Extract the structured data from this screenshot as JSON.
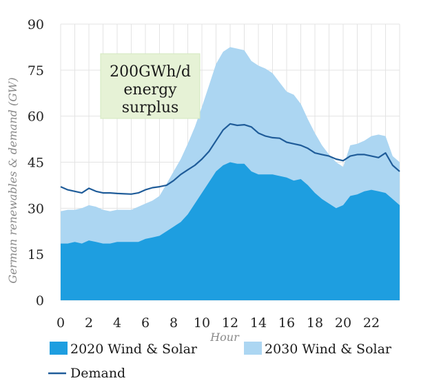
{
  "chart_data": {
    "type": "area",
    "xlabel": "Hour",
    "ylabel": "German renewables & demand (GW)",
    "xlim": [
      0,
      24
    ],
    "ylim": [
      0,
      90
    ],
    "y_ticks": [
      "0",
      "15",
      "30",
      "45",
      "60",
      "75",
      "90"
    ],
    "x_ticks": [
      "0",
      "2",
      "4",
      "6",
      "8",
      "10",
      "12",
      "14",
      "16",
      "18",
      "20",
      "22"
    ],
    "grid": "vertical and horizontal",
    "legend_position": "bottom",
    "annotation": {
      "lines": [
        "200GWh/d",
        "energy",
        "surplus"
      ]
    },
    "series": [
      {
        "name": "2020 Wind & Solar",
        "kind": "area",
        "color": "#1e9ee0",
        "x": [
          0,
          0.5,
          1,
          1.5,
          2,
          2.5,
          3,
          3.5,
          4,
          4.5,
          5,
          5.5,
          6,
          6.5,
          7,
          7.5,
          8,
          8.5,
          9,
          9.5,
          10,
          10.5,
          11,
          11.5,
          12,
          12.5,
          13,
          13.5,
          14,
          14.5,
          15,
          15.5,
          16,
          16.5,
          17,
          17.5,
          18,
          18.5,
          19,
          19.5,
          20,
          20.5,
          21,
          21.5,
          22,
          22.5,
          23,
          23.5,
          24
        ],
        "values": [
          18.5,
          18.5,
          19,
          18.5,
          19.5,
          19,
          18.5,
          18.5,
          19,
          19,
          19,
          19,
          20,
          20.5,
          21,
          22.5,
          24,
          25.5,
          28,
          31.5,
          35,
          38.5,
          42,
          44,
          45,
          44.5,
          44.5,
          42,
          41,
          41,
          41,
          40.5,
          40,
          39,
          39.5,
          37.5,
          35,
          33,
          31.5,
          30,
          31,
          34,
          34.5,
          35.5,
          36,
          35.5,
          35,
          33,
          31
        ]
      },
      {
        "name": "2030 Wind & Solar",
        "kind": "area",
        "color": "#acd6f2",
        "x": [
          0,
          0.5,
          1,
          1.5,
          2,
          2.5,
          3,
          3.5,
          4,
          4.5,
          5,
          5.5,
          6,
          6.5,
          7,
          7.5,
          8,
          8.5,
          9,
          9.5,
          10,
          10.5,
          11,
          11.5,
          12,
          12.5,
          13,
          13.5,
          14,
          14.5,
          15,
          15.5,
          16,
          16.5,
          17,
          17.5,
          18,
          18.5,
          19,
          19.5,
          20,
          20.5,
          21,
          21.5,
          22,
          22.5,
          23,
          23.5,
          24
        ],
        "values": [
          29,
          29.5,
          29.5,
          30,
          31,
          30.5,
          29.5,
          29,
          29.5,
          29.5,
          29.5,
          30.5,
          31.5,
          32.5,
          34,
          38,
          42,
          46,
          51,
          56.5,
          63,
          70,
          77,
          81,
          82.5,
          82,
          81.5,
          78,
          76.5,
          75.5,
          74,
          71,
          68,
          67,
          64,
          59,
          54.5,
          50.5,
          47.5,
          45,
          43.5,
          50.5,
          51,
          52,
          53.5,
          54,
          53.5,
          47,
          45
        ]
      },
      {
        "name": "Demand",
        "kind": "line",
        "color": "#1f5c99",
        "x": [
          0,
          0.5,
          1,
          1.5,
          2,
          2.5,
          3,
          3.5,
          4,
          4.5,
          5,
          5.5,
          6,
          6.5,
          7,
          7.5,
          8,
          8.5,
          9,
          9.5,
          10,
          10.5,
          11,
          11.5,
          12,
          12.5,
          13,
          13.5,
          14,
          14.5,
          15,
          15.5,
          16,
          16.5,
          17,
          17.5,
          18,
          18.5,
          19,
          19.5,
          20,
          20.5,
          21,
          21.5,
          22,
          22.5,
          23,
          23.5,
          24
        ],
        "values": [
          37,
          36,
          35.5,
          35,
          36.5,
          35.5,
          35,
          35,
          34.8,
          34.7,
          34.6,
          35,
          36,
          36.7,
          37,
          37.5,
          39,
          41,
          42.5,
          44,
          46,
          48.5,
          52,
          55.5,
          57.5,
          57,
          57.2,
          56.5,
          54.5,
          53.5,
          53,
          52.8,
          51.5,
          51,
          50.5,
          49.5,
          48,
          47.5,
          47,
          46,
          45.5,
          47,
          47.5,
          47.5,
          47,
          46.5,
          48,
          44,
          42
        ]
      }
    ]
  }
}
